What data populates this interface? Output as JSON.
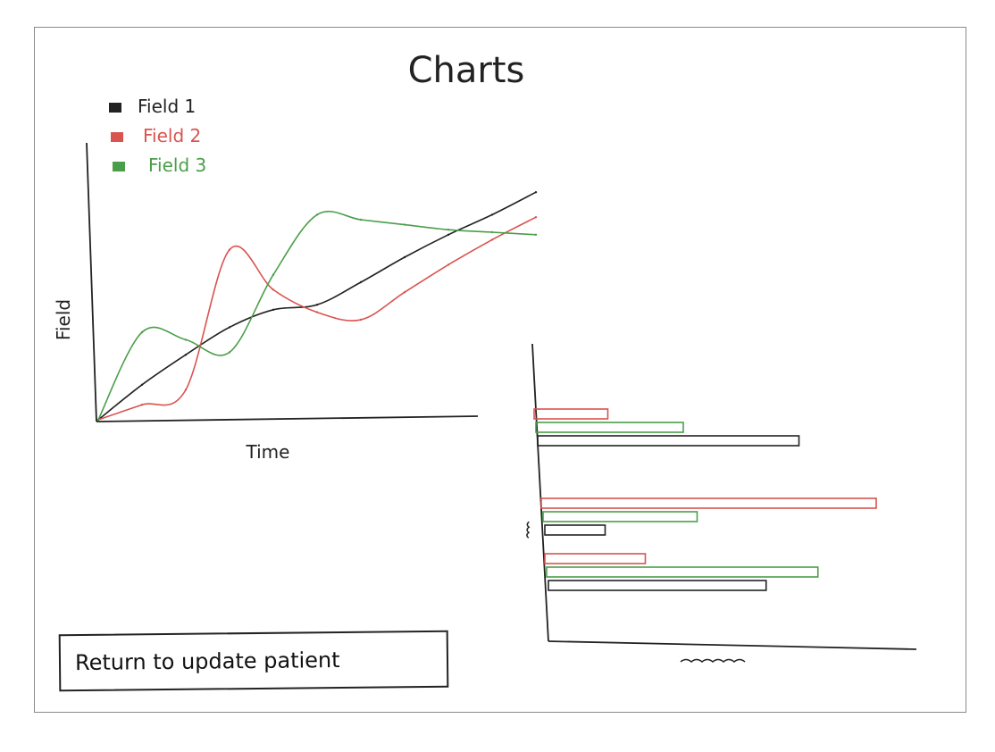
{
  "page": {
    "title": "Charts"
  },
  "button": {
    "label": "Return to update patient"
  },
  "colors": {
    "field1": "#222222",
    "field2": "#d9534f",
    "field3": "#4a9e4a"
  },
  "chart_data": [
    {
      "type": "line",
      "title": "",
      "xlabel": "Time",
      "ylabel": "Field",
      "legend_position": "top-left",
      "grid": false,
      "x": [
        0,
        1,
        2,
        3,
        4,
        5,
        6,
        7,
        8,
        9,
        10
      ],
      "xlim": [
        0,
        10
      ],
      "ylim": [
        0,
        100
      ],
      "series": [
        {
          "name": "Field 1",
          "color": "#222222",
          "values": [
            0,
            14,
            26,
            37,
            44,
            46,
            55,
            65,
            74,
            82,
            91
          ]
        },
        {
          "name": "Field 2",
          "color": "#d9534f",
          "values": [
            0,
            6,
            12,
            68,
            52,
            43,
            40,
            51,
            62,
            72,
            81
          ]
        },
        {
          "name": "Field 3",
          "color": "#4a9e4a",
          "values": [
            0,
            35,
            32,
            27,
            58,
            82,
            80,
            78,
            76,
            75,
            74
          ]
        }
      ]
    },
    {
      "type": "bar",
      "orientation": "horizontal",
      "title": "",
      "xlabel": "",
      "ylabel": "",
      "grid": false,
      "xlim": [
        0,
        100
      ],
      "categories": [
        "",
        "",
        ""
      ],
      "series": [
        {
          "name": "Field 2",
          "color": "#d9534f",
          "values": [
            22,
            100,
            30
          ]
        },
        {
          "name": "Field 3",
          "color": "#4a9e4a",
          "values": [
            44,
            46,
            81
          ]
        },
        {
          "name": "Field 1",
          "color": "#222222",
          "values": [
            78,
            18,
            65
          ]
        }
      ]
    }
  ]
}
